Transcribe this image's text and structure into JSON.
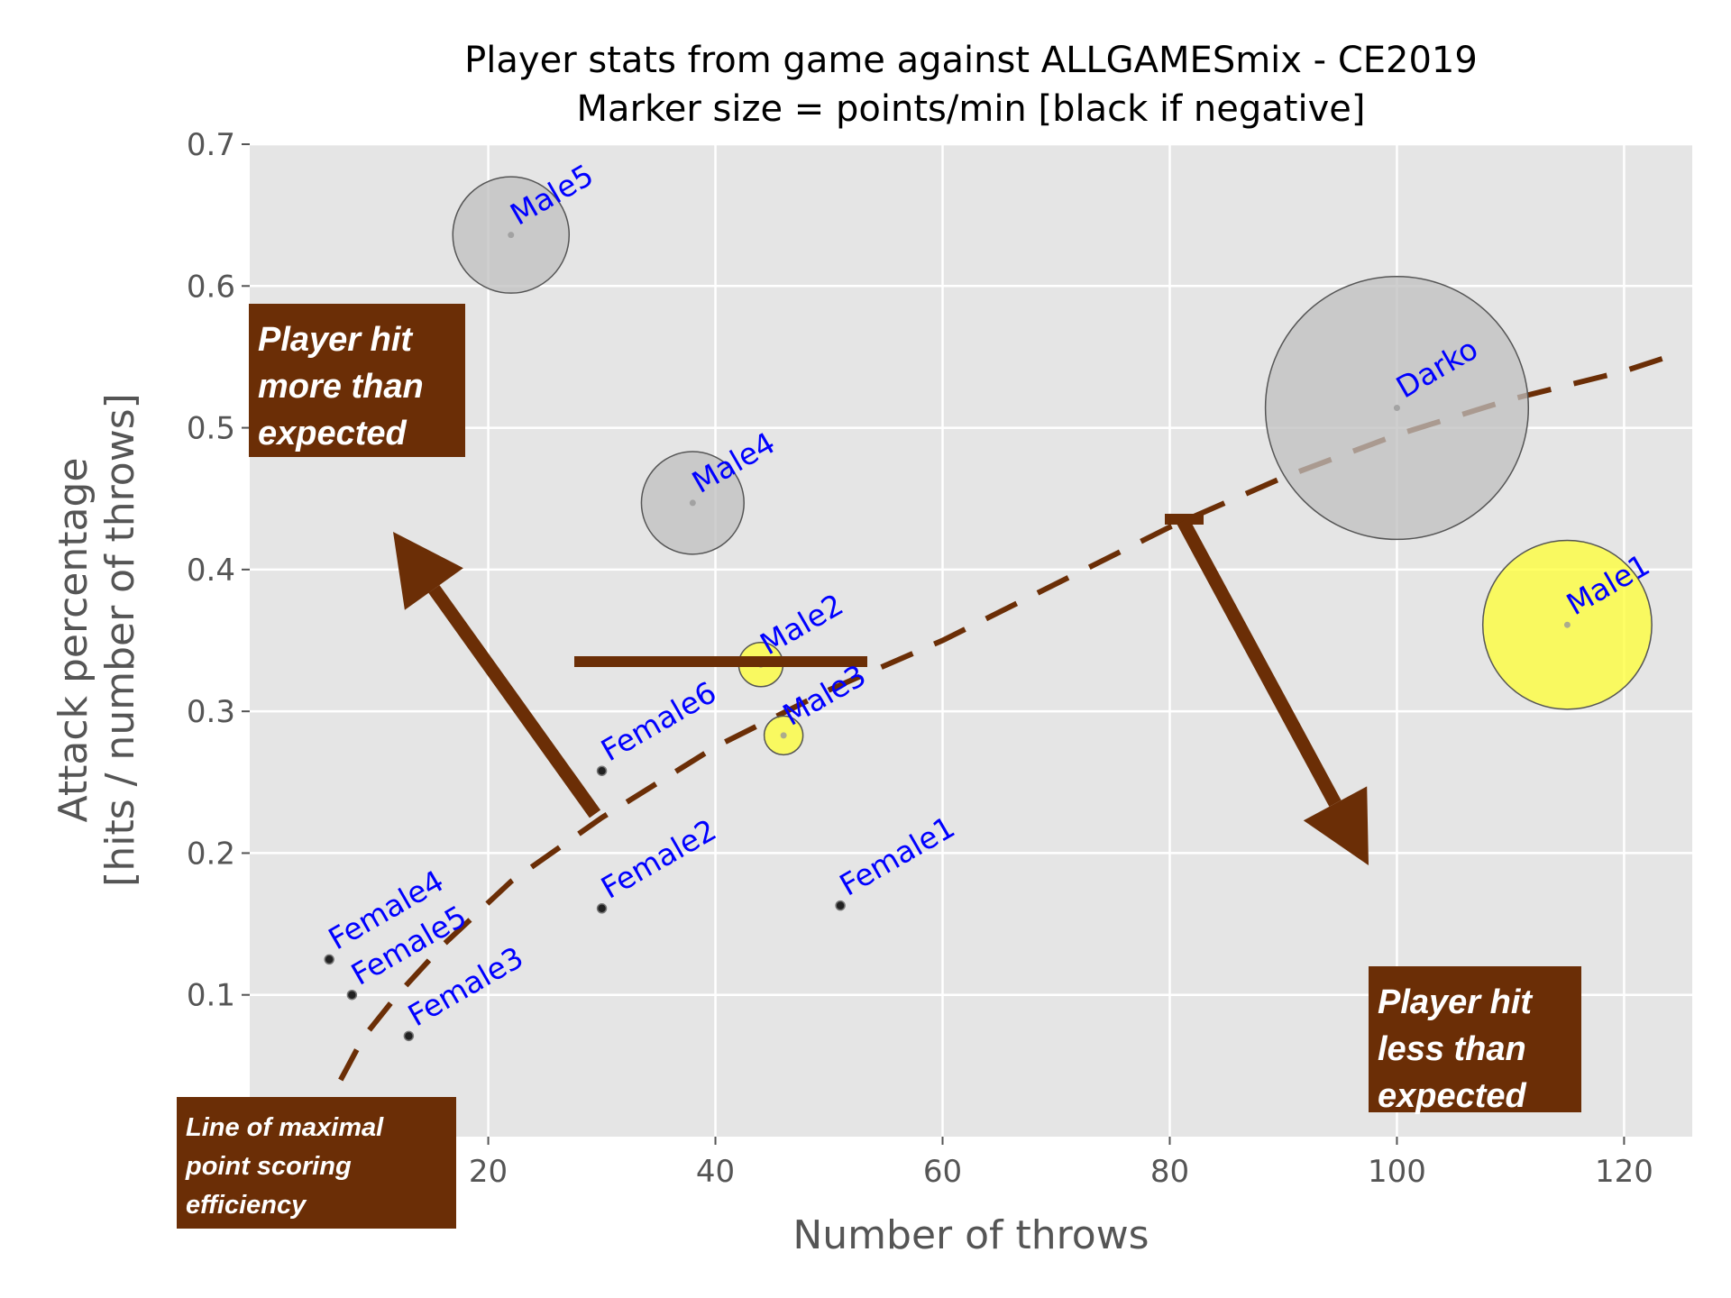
{
  "chart_data": {
    "type": "scatter",
    "title": "Player stats from game against ALLGAMESmix - CE2019",
    "subtitle": "Marker size = points/min [black if negative]",
    "xlabel": "Number of throws",
    "ylabel_line1": "Attack percentage",
    "ylabel_line2": "[hits / number of throws]",
    "xlim": [
      -1,
      126
    ],
    "ylim": [
      0,
      0.7
    ],
    "x_ticks": [
      20,
      40,
      60,
      80,
      100,
      120
    ],
    "y_ticks": [
      0.1,
      0.2,
      0.3,
      0.4,
      0.5,
      0.6,
      0.7
    ],
    "y_tick_zero": "0",
    "grid": true,
    "points": [
      {
        "name": "Male5",
        "x": 22,
        "y": 0.636,
        "points_per_min": 0.9,
        "color": "#bfbfbf"
      },
      {
        "name": "Darko",
        "x": 100,
        "y": 0.514,
        "points_per_min": 4.6,
        "color": "#bfbfbf"
      },
      {
        "name": "Male4",
        "x": 38,
        "y": 0.447,
        "points_per_min": 0.7,
        "color": "#bfbfbf"
      },
      {
        "name": "Male1",
        "x": 115,
        "y": 0.361,
        "points_per_min": 1.9,
        "color": "#ffff33"
      },
      {
        "name": "Male2",
        "x": 44,
        "y": 0.333,
        "points_per_min": 0.13,
        "color": "#ffff33"
      },
      {
        "name": "Male3",
        "x": 46,
        "y": 0.283,
        "points_per_min": 0.1,
        "color": "#ffff33"
      },
      {
        "name": "Female6",
        "x": 30,
        "y": 0.258,
        "points_per_min": -0.01,
        "color": "#000000"
      },
      {
        "name": "Female1",
        "x": 51,
        "y": 0.163,
        "points_per_min": -0.01,
        "color": "#000000"
      },
      {
        "name": "Female2",
        "x": 30,
        "y": 0.161,
        "points_per_min": -0.01,
        "color": "#000000"
      },
      {
        "name": "Female4",
        "x": 6,
        "y": 0.125,
        "points_per_min": -0.01,
        "color": "#000000"
      },
      {
        "name": "Female5",
        "x": 8,
        "y": 0.1,
        "points_per_min": -0.01,
        "color": "#000000"
      },
      {
        "name": "Female3",
        "x": 13,
        "y": 0.071,
        "points_per_min": -0.01,
        "color": "#000000"
      }
    ],
    "efficiency_line": [
      [
        7,
        0.04
      ],
      [
        9,
        0.07
      ],
      [
        12,
        0.1
      ],
      [
        16,
        0.135
      ],
      [
        22,
        0.18
      ],
      [
        30,
        0.225
      ],
      [
        40,
        0.275
      ],
      [
        50,
        0.315
      ],
      [
        60,
        0.35
      ],
      [
        70,
        0.39
      ],
      [
        80,
        0.43
      ],
      [
        90,
        0.465
      ],
      [
        100,
        0.495
      ],
      [
        110,
        0.52
      ],
      [
        120,
        0.54
      ],
      [
        125,
        0.553
      ]
    ],
    "line_color": "#6b2e06",
    "annotations": {
      "above": [
        "Player hit",
        "more than",
        "expected"
      ],
      "below": [
        "Player hit",
        "less than",
        "expected"
      ],
      "line": [
        "Line of maximal",
        "point scoring",
        "efficiency"
      ]
    }
  }
}
